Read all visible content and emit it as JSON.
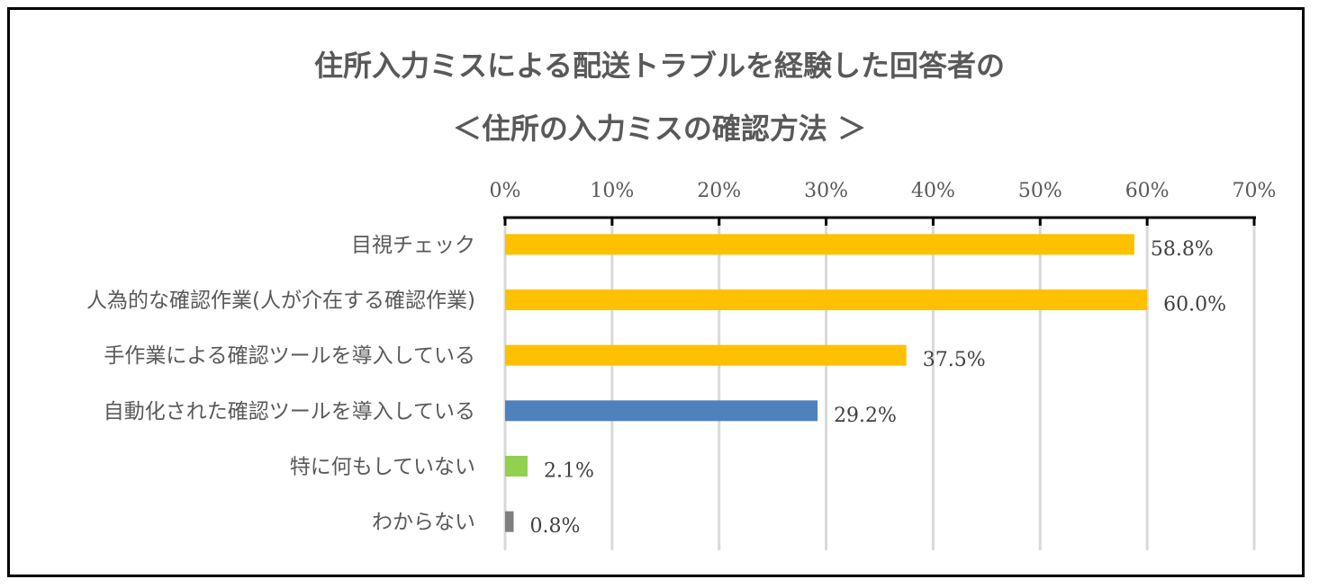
{
  "chart_data": {
    "type": "bar",
    "orientation": "horizontal",
    "title": [
      "住所入力ミスによる配送トラブルを経験した回答者の",
      "＜住所の入力ミスの確認方法 ＞"
    ],
    "xlabel": "",
    "ylabel": "",
    "xlim": [
      0,
      70
    ],
    "x_ticks": [
      "0%",
      "10%",
      "20%",
      "30%",
      "40%",
      "50%",
      "60%",
      "70%"
    ],
    "tick_step": 10,
    "grid": true,
    "legend": "none",
    "categories": [
      "目視チェック",
      "人為的な確認作業(人が介在する確認作業)",
      "手作業による確認ツールを導入している",
      "自動化された確認ツールを導入している",
      "特に何もしていない",
      "わからない"
    ],
    "values": [
      58.8,
      60.0,
      37.5,
      29.2,
      2.1,
      0.8
    ],
    "data_labels": [
      "58.8%",
      "60.0%",
      "37.5%",
      "29.2%",
      "2.1%",
      "0.8%"
    ],
    "colors": [
      "#FFC000",
      "#FFC000",
      "#FFC000",
      "#4F81BD",
      "#92D050",
      "#7F7F7F"
    ]
  }
}
